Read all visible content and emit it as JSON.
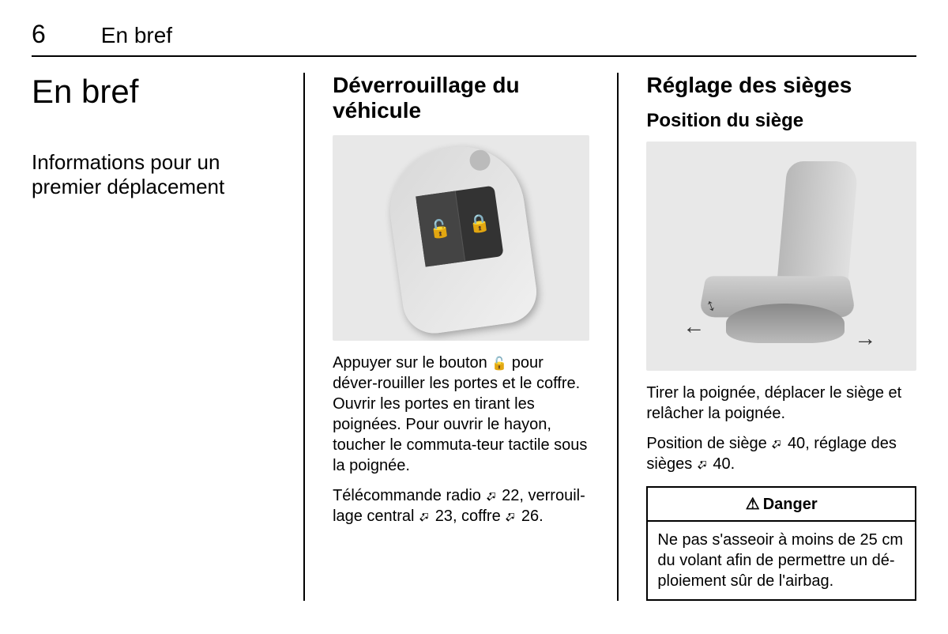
{
  "header": {
    "page_number": "6",
    "section": "En bref"
  },
  "col1": {
    "title": "En bref",
    "subtitle": "Informations pour un premier déplacement"
  },
  "col2": {
    "heading": "Déverrouillage du véhicule",
    "para1_a": "Appuyer sur le bouton ",
    "para1_b": " pour déver-rouiller les portes et le coffre. Ouvrir les portes en tirant les poignées. Pour ouvrir le hayon, toucher le commuta-teur tactile sous la poignée.",
    "para2_a": "Télécommande radio ",
    "ref1": "22",
    "para2_b": ", verrouil-lage central ",
    "ref2": "23",
    "para2_c": ", coffre ",
    "ref3": "26",
    "para2_d": "."
  },
  "col3": {
    "heading": "Réglage des sièges",
    "subheading": "Position du siège",
    "para1": "Tirer la poignée, déplacer le siège et relâcher la poignée.",
    "para2_a": "Position de siège ",
    "ref1": "40",
    "para2_b": ", réglage des sièges ",
    "ref2": "40",
    "para2_c": ".",
    "danger_title": "Danger",
    "danger_body": "Ne pas s'asseoir à moins de 25 cm du volant afin de permettre un dé-ploiement sûr de l'airbag."
  },
  "colors": {
    "text": "#000000",
    "background": "#ffffff",
    "image_bg": "#e8e8e8"
  }
}
